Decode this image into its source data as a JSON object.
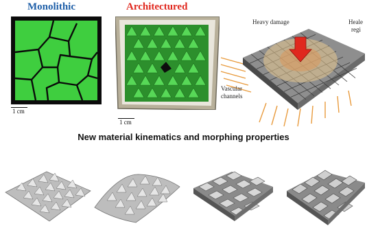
{
  "panels": {
    "monolithic": {
      "title": "Monolithic",
      "scale": "1 cm"
    },
    "architectured": {
      "title": "Architectured",
      "scale": "1 cm"
    },
    "healing": {
      "heavy_damage_label": "Heavy damage",
      "healed_label": "Heale",
      "healed_label_2": "regi",
      "vascular_label": "Vascular",
      "vascular_label_2": "channels"
    }
  },
  "section": {
    "title": "New material kinematics and morphing properties"
  },
  "colors": {
    "title_blue": "#1f5fa8",
    "title_red": "#e0281e",
    "green": "#3fce3f",
    "arrow_red": "#e0281e"
  }
}
